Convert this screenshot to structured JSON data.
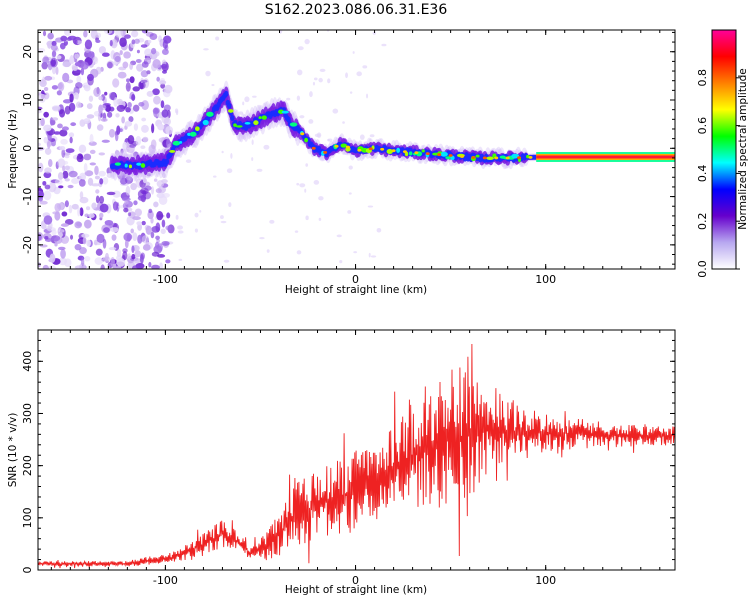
{
  "title": "S162.2023.086.06.31.E36",
  "chart_data": [
    {
      "type": "heatmap",
      "xlabel": "Height of straight line (km)",
      "ylabel": "Frequency (Hz)",
      "xlim": [
        -167,
        168
      ],
      "ylim": [
        -25,
        24.5
      ],
      "xticks": [
        -100,
        0,
        100
      ],
      "yticks": [
        -20,
        -10,
        0,
        10,
        20
      ],
      "xtick_labels": [
        "-100",
        "0",
        "100"
      ],
      "ytick_labels": [
        "-20",
        "-10",
        "0",
        "10",
        "20"
      ],
      "colorbar": {
        "label": "Normalized spectral amplitude",
        "range": [
          0,
          1
        ],
        "ticks": [
          0.0,
          0.2,
          0.4,
          0.6,
          0.8
        ],
        "tick_labels": [
          "0.0",
          "0.2",
          "0.4",
          "0.6",
          "0.8"
        ],
        "colormap": [
          "#ffffff",
          "#b8a8f0",
          "#6600cc",
          "#0000ff",
          "#00ffff",
          "#00ff00",
          "#ffff00",
          "#ff8000",
          "#ff0000",
          "#ff0099"
        ]
      },
      "ridge": [
        {
          "x": -128,
          "y": -3.5
        },
        {
          "x": -115,
          "y": -3.5
        },
        {
          "x": -100,
          "y": -3
        },
        {
          "x": -94,
          "y": 1
        },
        {
          "x": -85,
          "y": 3
        },
        {
          "x": -78,
          "y": 6
        },
        {
          "x": -72,
          "y": 9
        },
        {
          "x": -68,
          "y": 11
        },
        {
          "x": -64,
          "y": 5
        },
        {
          "x": -58,
          "y": 4.5
        },
        {
          "x": -50,
          "y": 6
        },
        {
          "x": -45,
          "y": 7
        },
        {
          "x": -38,
          "y": 8
        },
        {
          "x": -34,
          "y": 5
        },
        {
          "x": -28,
          "y": 3
        },
        {
          "x": -22,
          "y": 0
        },
        {
          "x": -15,
          "y": -1
        },
        {
          "x": -8,
          "y": 1
        },
        {
          "x": 0,
          "y": -0.5
        },
        {
          "x": 10,
          "y": 0
        },
        {
          "x": 20,
          "y": -0.5
        },
        {
          "x": 35,
          "y": -1
        },
        {
          "x": 50,
          "y": -1.5
        },
        {
          "x": 65,
          "y": -2
        },
        {
          "x": 80,
          "y": -2
        },
        {
          "x": 100,
          "y": -1.8
        },
        {
          "x": 130,
          "y": -1.8
        },
        {
          "x": 168,
          "y": -1.8
        }
      ]
    },
    {
      "type": "line",
      "xlabel": "Height of straight line (km)",
      "ylabel": "SNR (10 * v/v)",
      "xlim": [
        -167,
        168
      ],
      "ylim": [
        0,
        460
      ],
      "xticks": [
        -100,
        0,
        100
      ],
      "yticks": [
        0,
        100,
        200,
        300,
        400
      ],
      "xtick_labels": [
        "-100",
        "0",
        "100"
      ],
      "ytick_labels": [
        "0",
        "100",
        "200",
        "300",
        "400"
      ],
      "color": "#ee2222",
      "envelope": [
        {
          "x": -167,
          "base": 12,
          "amp": 5
        },
        {
          "x": -120,
          "base": 12,
          "amp": 6
        },
        {
          "x": -95,
          "base": 25,
          "amp": 12
        },
        {
          "x": -80,
          "base": 50,
          "amp": 25
        },
        {
          "x": -70,
          "base": 70,
          "amp": 30
        },
        {
          "x": -62,
          "base": 55,
          "amp": 20
        },
        {
          "x": -55,
          "base": 30,
          "amp": 15
        },
        {
          "x": -45,
          "base": 50,
          "amp": 35
        },
        {
          "x": -30,
          "base": 110,
          "amp": 70
        },
        {
          "x": -15,
          "base": 130,
          "amp": 75
        },
        {
          "x": 0,
          "base": 150,
          "amp": 90
        },
        {
          "x": 15,
          "base": 180,
          "amp": 80
        },
        {
          "x": 30,
          "base": 220,
          "amp": 120
        },
        {
          "x": 50,
          "base": 250,
          "amp": 170
        },
        {
          "x": 70,
          "base": 270,
          "amp": 100
        },
        {
          "x": 90,
          "base": 265,
          "amp": 50
        },
        {
          "x": 110,
          "base": 262,
          "amp": 35
        },
        {
          "x": 140,
          "base": 258,
          "amp": 25
        },
        {
          "x": 168,
          "base": 258,
          "amp": 22
        }
      ]
    }
  ]
}
